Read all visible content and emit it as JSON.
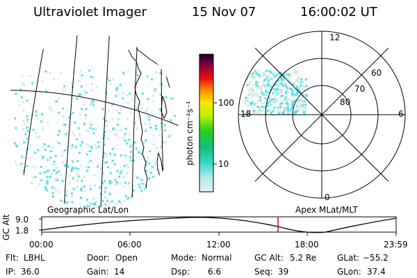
{
  "header": {
    "instrument": "Ultraviolet Imager",
    "date": "15 Nov 07",
    "time": "16:00:02 UT"
  },
  "colorbar": {
    "unit_label": "photon cm⁻²s⁻¹",
    "ticks": [
      "100",
      "10"
    ]
  },
  "polar": {
    "labels": {
      "top": "12",
      "bottom": "0",
      "left": "18",
      "right": "6"
    },
    "lat_labels": [
      "60",
      "70",
      "80"
    ]
  },
  "labels": {
    "geo": "Geographic Lat/Lon",
    "apex": "Apex MLat/MLT"
  },
  "timeline": {
    "axis_label": "GC Alt",
    "y_max": "9.0",
    "y_min": "1.8",
    "ticks": [
      "00:00",
      "06:00",
      "12:00",
      "18:00",
      "23:59"
    ],
    "current_time_hours": 16.0
  },
  "status": {
    "flt_label": "Flt:",
    "flt_value": "LBHL",
    "ip_label": "IP:",
    "ip_value": "36.0",
    "door_label": "Door:",
    "door_value": "Open",
    "gain_label": "Gain:",
    "gain_value": "14",
    "mode_label": "Mode:",
    "mode_value": "Normal",
    "dsp_label": "Dsp:",
    "dsp_value": "6.6",
    "gcalt_label": "GC Alt:",
    "gcalt_value": "5.2 Re",
    "seq_label": "Seq:",
    "seq_value": "39",
    "glat_label": "GLat:",
    "glat_value": "−55.2",
    "glon_label": "GLon:",
    "glon_value": "37.4"
  },
  "colors": {
    "aurora": "#56e0e6",
    "haze": "#d8e6e6",
    "marker": "#cc0000"
  }
}
